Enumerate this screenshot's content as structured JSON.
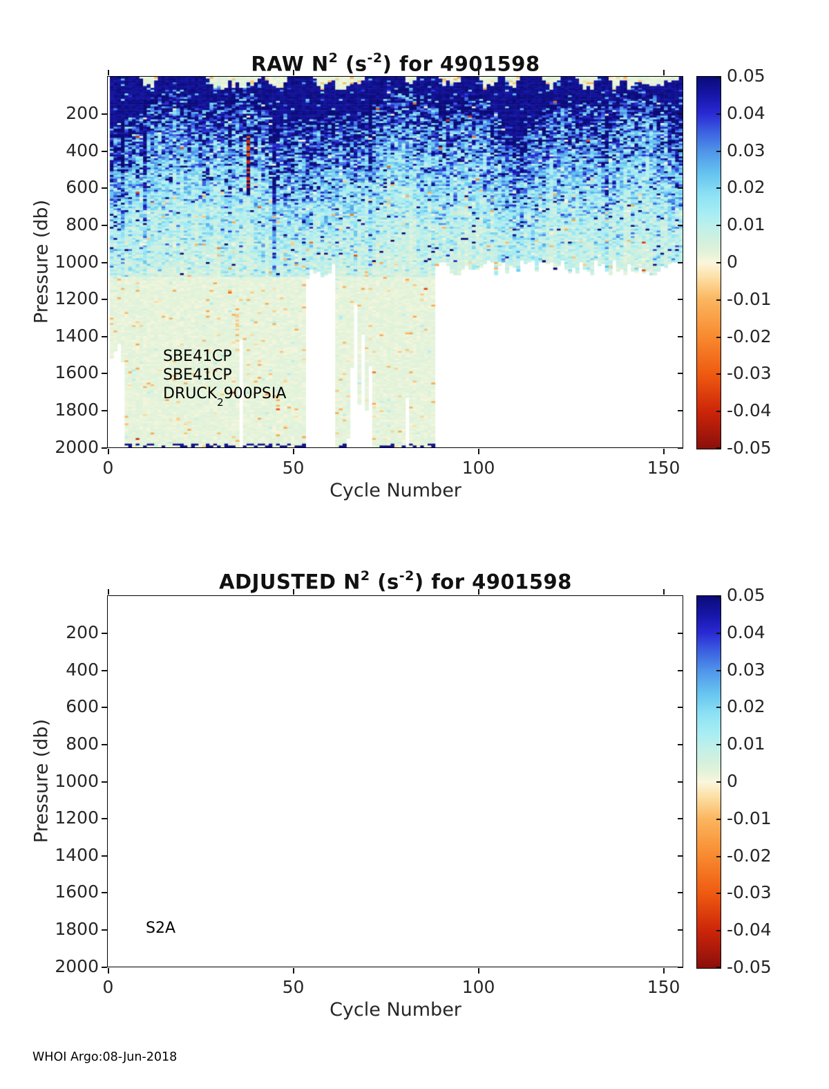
{
  "footer": "WHOI Argo:08-Jun-2018",
  "chart_data": [
    {
      "type": "heatmap",
      "id": "raw",
      "title": {
        "p1": "RAW N",
        "sup1": "2",
        "p2": " (s",
        "sup2": "-2",
        "p3": ") for 4901598"
      },
      "xlabel": "Cycle Number",
      "ylabel": "Pressure (db)",
      "xlim": [
        0,
        155.2
      ],
      "ylim_db": [
        0,
        2000
      ],
      "y_axis_reversed": true,
      "grid": false,
      "xticks": [
        0,
        50,
        100,
        150
      ],
      "yticks": [
        200,
        400,
        600,
        800,
        1000,
        1200,
        1400,
        1600,
        1800,
        2000
      ],
      "annotations": [
        "SBE41CP",
        "SBE41CP",
        {
          "t1": "DRUCK",
          "sub": "2",
          "t2": "900PSIA"
        }
      ],
      "colorbar": {
        "min": -0.05,
        "max": 0.05,
        "tick_values": [
          0.05,
          0.04,
          0.03,
          0.02,
          0.01,
          0,
          -0.01,
          -0.02,
          -0.03,
          -0.04,
          -0.05
        ],
        "tick_labels": [
          "0.05",
          "0.04",
          "0.03",
          "0.02",
          "0.01",
          "0",
          "-0.01",
          "-0.02",
          "-0.03",
          "-0.04",
          "-0.05"
        ],
        "stops": [
          [
            -0.05,
            "#8a0f0c"
          ],
          [
            -0.04,
            "#cc2509"
          ],
          [
            -0.03,
            "#ee5a11"
          ],
          [
            -0.02,
            "#f8892f"
          ],
          [
            -0.01,
            "#fbb55e"
          ],
          [
            -0.004,
            "#fcdfa4"
          ],
          [
            0,
            "#fbf6dd"
          ],
          [
            0.002,
            "#e7f4da"
          ],
          [
            0.005,
            "#d6f0dc"
          ],
          [
            0.009,
            "#c2f0e8"
          ],
          [
            0.013,
            "#a9edf4"
          ],
          [
            0.018,
            "#8fe2f4"
          ],
          [
            0.024,
            "#66c3ef"
          ],
          [
            0.03,
            "#4f94e9"
          ],
          [
            0.035,
            "#3c62e0"
          ],
          [
            0.04,
            "#2a2ad4"
          ],
          [
            0.045,
            "#1616a8"
          ],
          [
            0.05,
            "#0b0b78"
          ]
        ]
      },
      "field": {
        "seed": 20180608,
        "cycles": 155,
        "rows": 200,
        "bin_db": 10,
        "surface_band": {
          "base_db": 150,
          "wave1_amp": 80,
          "wave1_period": 8.8,
          "wave2_amp": 45,
          "wave2_period": 3.4,
          "min_db": 55,
          "max_db": 370,
          "value": 0.05
        },
        "decay": {
          "tau_db_min": 320,
          "tau_db_max": 450,
          "surface_value": 0.052
        },
        "deep": {
          "start_db": 1080,
          "value_min": 0.0012,
          "value_max": 0.0038,
          "cream_prob": 0.12,
          "cyan_speck_prob": 0.012
        },
        "noise_sigma": 0.5,
        "outliers": {
          "navy_prob": 0.01,
          "cream_prob": 0.007,
          "neg_mid_prob": 0.011,
          "neg_deep_prob": 0.024,
          "strong_neg_prob": 0.0015
        },
        "cream_patches": [
          [
            8,
            12
          ],
          [
            26,
            40
          ],
          [
            42,
            47
          ],
          [
            55,
            68
          ],
          [
            80,
            82
          ],
          [
            89,
            94
          ],
          [
            100,
            104
          ],
          [
            107,
            110
          ],
          [
            117,
            121
          ],
          [
            126,
            131
          ],
          [
            135,
            153
          ]
        ],
        "cream_patch_depth": [
          18,
          75
        ],
        "dark_columns": [
          3,
          9,
          32,
          44,
          70,
          134
        ],
        "dark_column_boost": 1.9,
        "missing_rules": [
          {
            "from": 0,
            "to": 3,
            "max_db": 1500,
            "jitter": 80
          },
          {
            "from": 4,
            "to": 34,
            "max_db": 2000,
            "jitter": 0
          },
          {
            "from": 35,
            "to": 35,
            "max_db": 1450,
            "jitter": 40
          },
          {
            "from": 36,
            "to": 52,
            "max_db": 2000,
            "jitter": 0
          },
          {
            "from": 53,
            "to": 60,
            "max_db": 1060,
            "jitter": 60,
            "deep_prob": 0.2,
            "deep_min": 1150,
            "deep_max": 1500
          },
          {
            "from": 61,
            "to": 87,
            "max_db": 2000,
            "jitter": 0,
            "cut_prob": 0.3,
            "cut_min": 1100,
            "cut_max": 1950
          },
          {
            "from": 88,
            "to": 154,
            "max_db": 1030,
            "jitter": 45
          }
        ],
        "features": [
          {
            "type": "dark_red_streak",
            "cycle": 37,
            "from_db": 320,
            "to_db": 640,
            "navy_value": 0.05,
            "red_value": -0.042,
            "red_prob": 0.3
          },
          {
            "type": "tan_streak",
            "cycle": 34,
            "from_db": 1280,
            "to_db": 1480,
            "value": -0.007,
            "prob": 0.55
          }
        ],
        "bottom_marks": {
          "rows_from_db": 1980,
          "prob": 0.42,
          "value": 0.048,
          "min_col_depth": 1990
        }
      }
    },
    {
      "type": "heatmap",
      "id": "adjusted",
      "title": {
        "p1": "ADJUSTED N",
        "sup1": "2",
        "p2": " (s",
        "sup2": "-2",
        "p3": ") for 4901598"
      },
      "xlabel": "Cycle Number",
      "ylabel": "Pressure (db)",
      "xlim": [
        0,
        155.2
      ],
      "ylim_db": [
        0,
        2000
      ],
      "y_axis_reversed": true,
      "grid": false,
      "xticks": [
        0,
        50,
        100,
        150
      ],
      "yticks": [
        200,
        400,
        600,
        800,
        1000,
        1200,
        1400,
        1600,
        1800,
        2000
      ],
      "annotations": [
        "S2A"
      ],
      "colorbar": {
        "min": -0.05,
        "max": 0.05,
        "tick_values": [
          0.05,
          0.04,
          0.03,
          0.02,
          0.01,
          0,
          -0.01,
          -0.02,
          -0.03,
          -0.04,
          -0.05
        ],
        "tick_labels": [
          "0.05",
          "0.04",
          "0.03",
          "0.02",
          "0.01",
          "0",
          "-0.01",
          "-0.02",
          "-0.03",
          "-0.04",
          "-0.05"
        ],
        "stops": [
          [
            -0.05,
            "#8a0f0c"
          ],
          [
            -0.04,
            "#cc2509"
          ],
          [
            -0.03,
            "#ee5a11"
          ],
          [
            -0.02,
            "#f8892f"
          ],
          [
            -0.01,
            "#fbb55e"
          ],
          [
            -0.004,
            "#fcdfa4"
          ],
          [
            0,
            "#fbf6dd"
          ],
          [
            0.002,
            "#e7f4da"
          ],
          [
            0.005,
            "#d6f0dc"
          ],
          [
            0.009,
            "#c2f0e8"
          ],
          [
            0.013,
            "#a9edf4"
          ],
          [
            0.018,
            "#8fe2f4"
          ],
          [
            0.024,
            "#66c3ef"
          ],
          [
            0.03,
            "#4f94e9"
          ],
          [
            0.035,
            "#3c62e0"
          ],
          [
            0.04,
            "#2a2ad4"
          ],
          [
            0.045,
            "#1616a8"
          ],
          [
            0.05,
            "#0b0b78"
          ]
        ]
      },
      "field": null
    }
  ]
}
